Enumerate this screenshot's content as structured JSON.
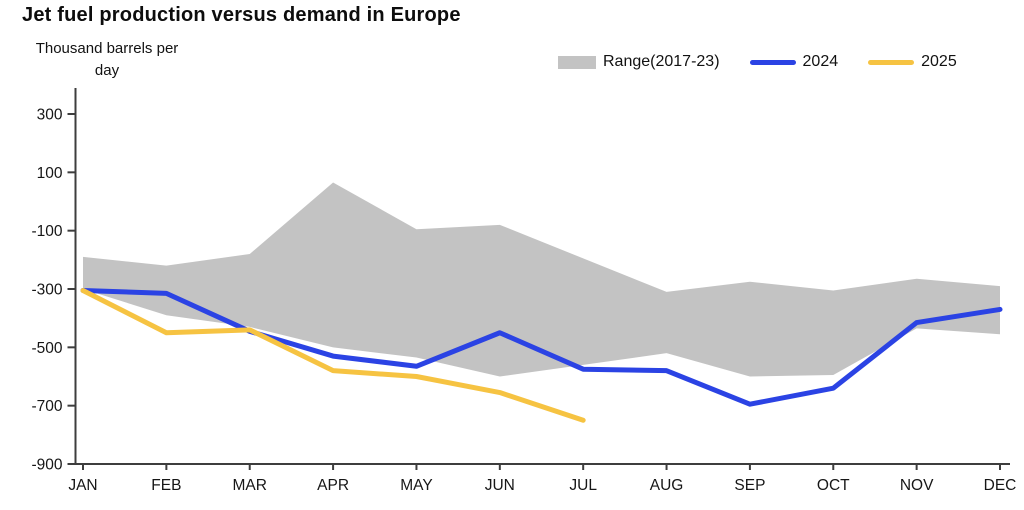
{
  "title": "Jet fuel production versus demand in Europe",
  "y_axis": {
    "unit_line1": "Thousand barrels per",
    "unit_line2": "day",
    "tick_values": [
      300,
      100,
      -100,
      -300,
      -500,
      -700,
      -900
    ]
  },
  "legend": {
    "range_label": "Range(2017-23)",
    "s2024_label": "2024",
    "s2025_label": "2025"
  },
  "colors": {
    "band": "#c3c3c3",
    "blue": "#2b43e4",
    "yellow": "#f6c342",
    "axis": "#3d3d3d"
  },
  "chart_data": {
    "type": "line",
    "title": "Jet fuel production versus demand in Europe",
    "ylabel": "Thousand barrels per day",
    "ylim": [
      -900,
      300
    ],
    "grid": false,
    "legend_position": "top-right",
    "categories": [
      "JAN",
      "FEB",
      "MAR",
      "APR",
      "MAY",
      "JUN",
      "JUL",
      "AUG",
      "SEP",
      "OCT",
      "NOV",
      "DEC"
    ],
    "band": {
      "name": "Range(2017-23)",
      "color": "#c3c3c3",
      "upper": [
        -190,
        -220,
        -180,
        65,
        -95,
        -80,
        -195,
        -310,
        -275,
        -305,
        -265,
        -290
      ],
      "lower": [
        -300,
        -390,
        -430,
        -500,
        -535,
        -600,
        -560,
        -520,
        -600,
        -595,
        -435,
        -455
      ]
    },
    "series": [
      {
        "name": "2024",
        "color": "#2b43e4",
        "values": [
          -305,
          -315,
          -445,
          -530,
          -565,
          -450,
          -575,
          -580,
          -695,
          -640,
          -415,
          -370
        ]
      },
      {
        "name": "2025",
        "color": "#f6c342",
        "values": [
          -305,
          -450,
          -440,
          -580,
          -600,
          -655,
          -750,
          null,
          null,
          null,
          null,
          null
        ]
      }
    ]
  }
}
